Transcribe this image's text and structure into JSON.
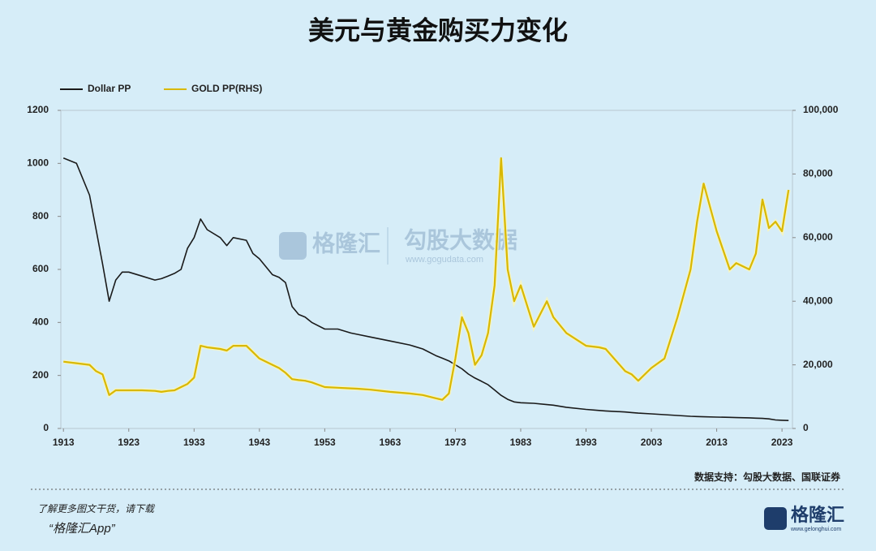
{
  "chart_data": {
    "type": "line",
    "title": "美元与黄金购买力变化",
    "x": [
      1913,
      1915,
      1917,
      1918,
      1919,
      1920,
      1921,
      1922,
      1923,
      1925,
      1927,
      1928,
      1929,
      1930,
      1931,
      1932,
      1933,
      1934,
      1935,
      1937,
      1938,
      1939,
      1941,
      1942,
      1943,
      1945,
      1946,
      1947,
      1948,
      1949,
      1950,
      1951,
      1953,
      1955,
      1957,
      1958,
      1960,
      1963,
      1966,
      1968,
      1970,
      1971,
      1972,
      1973,
      1974,
      1975,
      1976,
      1977,
      1978,
      1979,
      1980,
      1981,
      1982,
      1983,
      1985,
      1987,
      1988,
      1990,
      1993,
      1995,
      1996,
      1999,
      2000,
      2001,
      2003,
      2005,
      2007,
      2009,
      2010,
      2011,
      2013,
      2015,
      2016,
      2018,
      2019,
      2020,
      2021,
      2022,
      2023,
      2024
    ],
    "series": [
      {
        "name": "Dollar PP",
        "color": "#1a1a1a",
        "axis": "y",
        "values": [
          1020,
          1000,
          880,
          750,
          620,
          480,
          560,
          590,
          590,
          575,
          560,
          565,
          575,
          585,
          600,
          680,
          720,
          790,
          750,
          720,
          690,
          720,
          710,
          660,
          640,
          580,
          570,
          550,
          460,
          430,
          420,
          400,
          375,
          375,
          360,
          355,
          345,
          330,
          315,
          300,
          275,
          265,
          255,
          240,
          225,
          205,
          190,
          178,
          165,
          145,
          125,
          110,
          100,
          97,
          95,
          90,
          88,
          80,
          72,
          68,
          66,
          62,
          60,
          58,
          55,
          52,
          49,
          46,
          45,
          44,
          43,
          42,
          41,
          40,
          39,
          38,
          36,
          32,
          31,
          30
        ]
      },
      {
        "name": "GOLD PP(RHS)",
        "color": "#d9b800",
        "axis": "y2",
        "values": [
          21000,
          20500,
          20000,
          18000,
          17000,
          10500,
          12000,
          12000,
          12000,
          12000,
          11800,
          11500,
          11800,
          12000,
          13000,
          14000,
          16000,
          26000,
          25500,
          25000,
          24500,
          26000,
          26000,
          24000,
          22000,
          20000,
          19000,
          17500,
          15500,
          15200,
          15000,
          14500,
          13000,
          12800,
          12600,
          12500,
          12200,
          11500,
          11000,
          10500,
          9500,
          9000,
          11000,
          22000,
          35000,
          30000,
          20000,
          23000,
          30000,
          45000,
          85000,
          50000,
          40000,
          45000,
          32000,
          40000,
          35000,
          30000,
          26000,
          25500,
          25000,
          18000,
          17000,
          15000,
          19000,
          22000,
          35000,
          50000,
          65000,
          77000,
          62000,
          50000,
          52000,
          50000,
          55000,
          72000,
          63000,
          65000,
          62000,
          75000
        ]
      }
    ],
    "xlim": [
      1912.6,
      2024.6
    ],
    "xticks": [
      1913,
      1923,
      1933,
      1943,
      1953,
      1963,
      1973,
      1983,
      1993,
      2003,
      2013,
      2023
    ],
    "ylim": [
      0,
      1200
    ],
    "yticks": [
      0,
      200,
      400,
      600,
      800,
      1000,
      1200
    ],
    "y2lim": [
      0,
      100000
    ],
    "y2ticks": [
      0,
      {
        "value": 20000,
        "label": "20,000"
      },
      {
        "value": 40000,
        "label": "40,000"
      },
      {
        "value": 60000,
        "label": "60,000"
      },
      {
        "value": 80000,
        "label": "80,000"
      },
      {
        "value": 100000,
        "label": "100,000"
      }
    ],
    "source": "数据支持：勾股大数据、国联证券"
  },
  "watermark": {
    "brand": "格隆汇",
    "name": "勾股大数据",
    "url": "www.gogudata.com"
  },
  "footer": {
    "promo": "了解更多图文干货，请下载",
    "app": "“格隆汇App”",
    "logo": "格隆汇",
    "logo_url": "www.gelonghui.com"
  }
}
